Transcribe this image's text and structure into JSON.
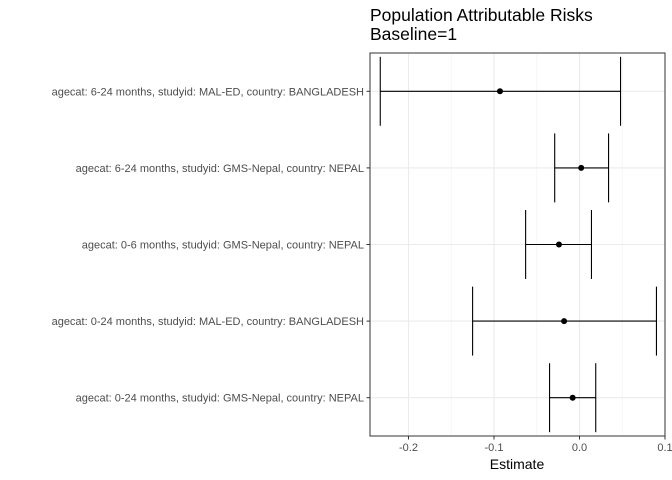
{
  "chart_data": {
    "type": "errorbar",
    "title": "Population Attributable Risks",
    "subtitle": "Baseline=1",
    "xlabel": "Estimate",
    "ylabel": "",
    "xlim": [
      -0.245,
      0.1
    ],
    "x_ticks": [
      -0.2,
      -0.1,
      0.0,
      0.1
    ],
    "x_tick_labels": [
      "-0.2",
      "-0.1",
      "0.0",
      "0.1"
    ],
    "grid": true,
    "categories": [
      "agecat: 6-24 months, studyid: MAL-ED, country: BANGLADESH",
      "agecat: 6-24 months, studyid: GMS-Nepal, country: NEPAL",
      "agecat: 0-6 months, studyid: GMS-Nepal, country: NEPAL",
      "agecat: 0-24 months, studyid: MAL-ED, country: BANGLADESH",
      "agecat: 0-24 months, studyid: GMS-Nepal, country: NEPAL"
    ],
    "estimates": [
      -0.093,
      0.002,
      -0.024,
      -0.018,
      -0.008
    ],
    "ci_lower": [
      -0.233,
      -0.029,
      -0.063,
      -0.125,
      -0.035
    ],
    "ci_upper": [
      0.048,
      0.034,
      0.014,
      0.09,
      0.019
    ]
  }
}
